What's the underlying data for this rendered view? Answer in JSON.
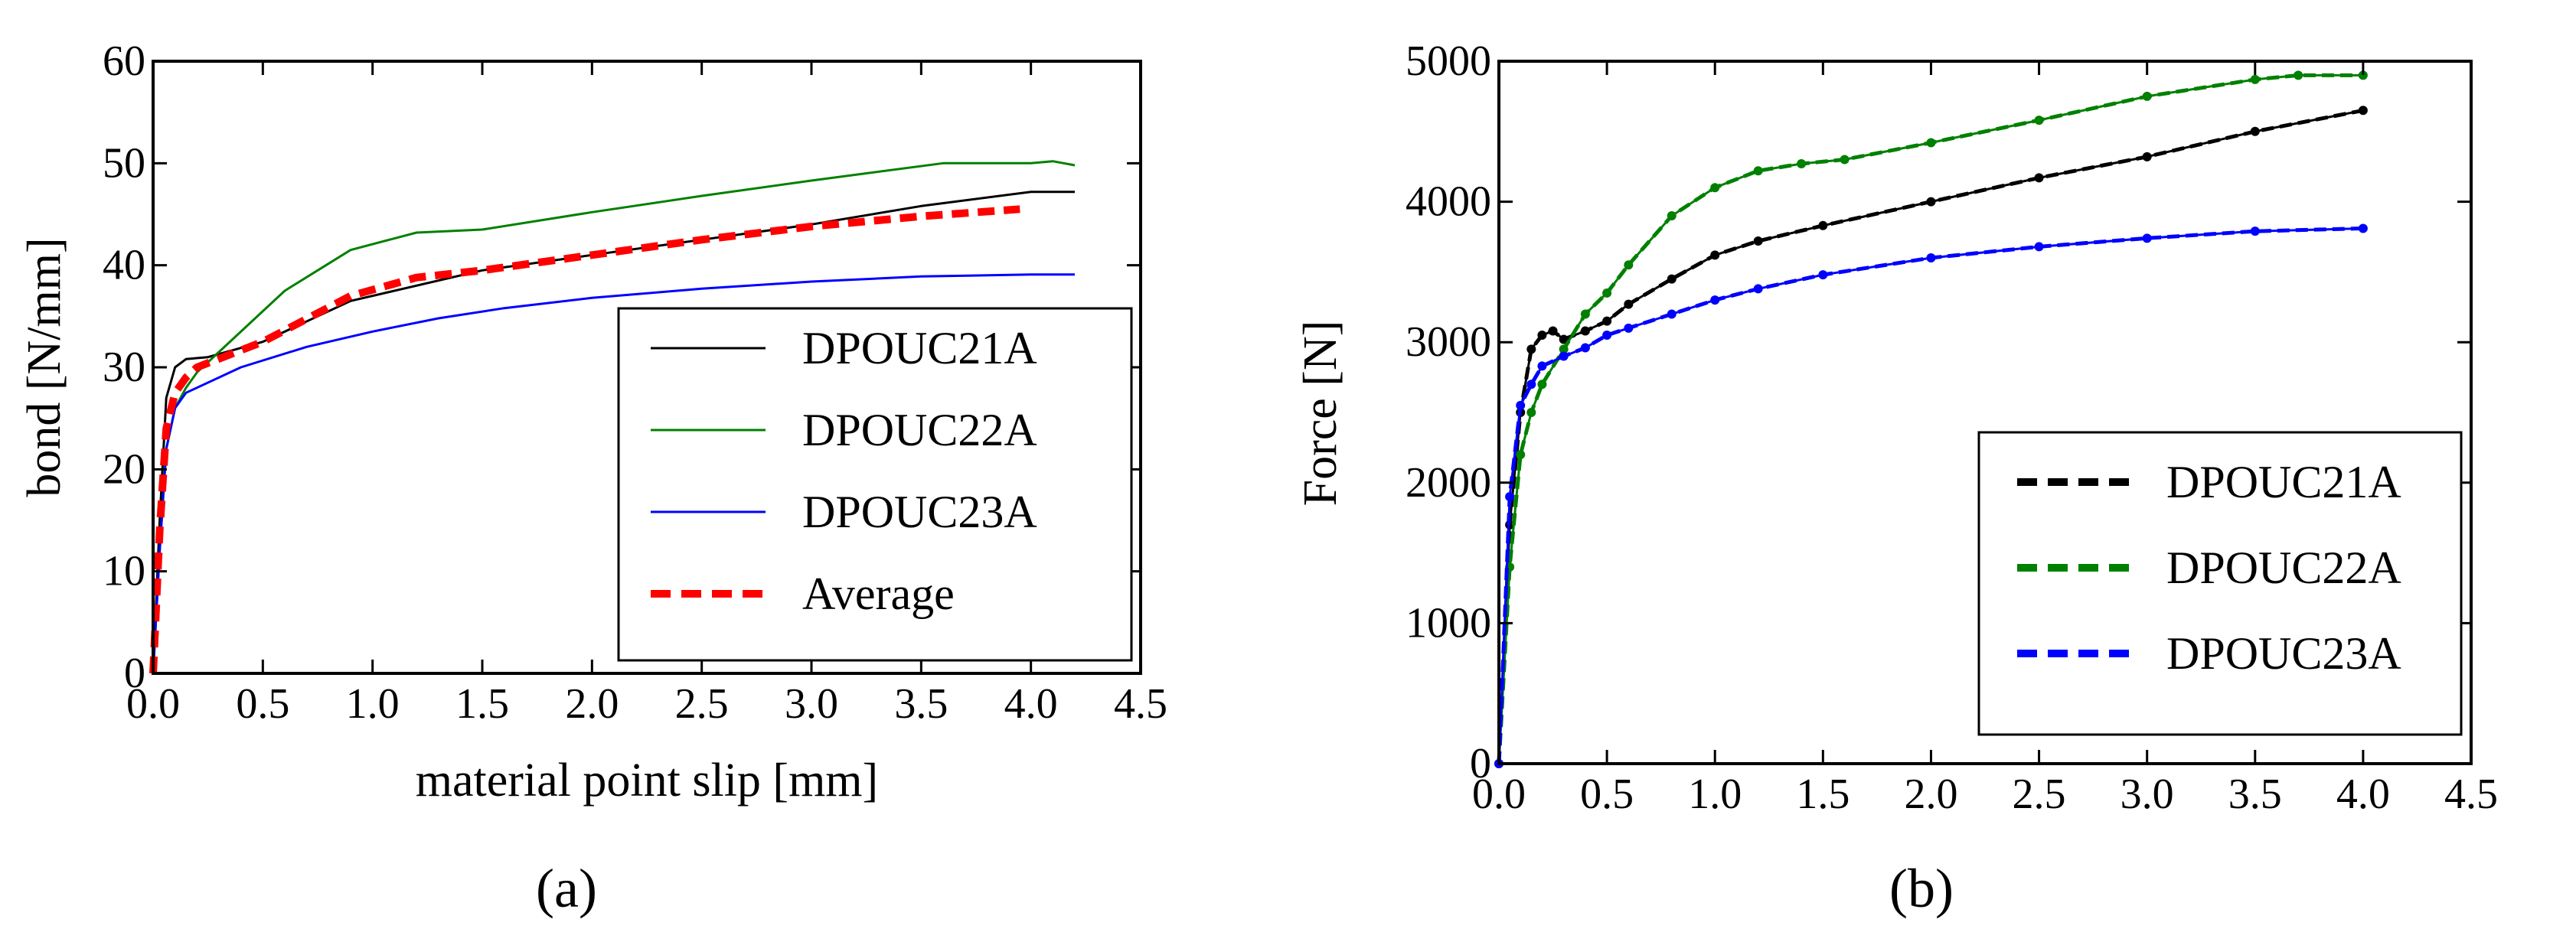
{
  "chart_data": [
    {
      "type": "line",
      "panel": "a",
      "caption": "(a)",
      "xlabel": "material point slip [mm]",
      "ylabel": "bond [N/mm]",
      "xlim": [
        0,
        4.5
      ],
      "ylim": [
        0,
        60
      ],
      "xticks": [
        "0.0",
        "0.5",
        "1.0",
        "1.5",
        "2.0",
        "2.5",
        "3.0",
        "3.5",
        "4.0",
        "4.5"
      ],
      "yticks": [
        "0",
        "10",
        "20",
        "30",
        "40",
        "50",
        "60"
      ],
      "legend_position": "lower-right",
      "series": [
        {
          "name": "DPOUC21A",
          "color": "#000000",
          "style": "solid",
          "x": [
            0,
            0.03,
            0.06,
            0.1,
            0.15,
            0.25,
            0.5,
            0.9,
            1.2,
            1.5,
            2.0,
            2.5,
            3.0,
            3.5,
            4.0,
            4.2
          ],
          "y": [
            0,
            15,
            27,
            30,
            30.8,
            31,
            32.5,
            36.5,
            38,
            39.5,
            41,
            42.5,
            44,
            45.8,
            47.2,
            47.2
          ]
        },
        {
          "name": "DPOUC22A",
          "color": "#008000",
          "style": "solid",
          "x": [
            0,
            0.03,
            0.06,
            0.1,
            0.15,
            0.2,
            0.3,
            0.45,
            0.6,
            0.75,
            0.9,
            1.2,
            1.5,
            2.0,
            2.5,
            3.0,
            3.6,
            4.0,
            4.1,
            4.2
          ],
          "y": [
            0,
            12,
            22,
            26,
            28,
            29.5,
            31.5,
            34.5,
            37.5,
            39.5,
            41.5,
            43.2,
            43.5,
            45.2,
            46.8,
            48.3,
            50,
            50,
            50.2,
            49.8
          ]
        },
        {
          "name": "DPOUC23A",
          "color": "#0000ff",
          "style": "solid",
          "x": [
            0,
            0.03,
            0.06,
            0.1,
            0.15,
            0.2,
            0.4,
            0.7,
            1.0,
            1.3,
            1.6,
            2.0,
            2.5,
            3.0,
            3.5,
            4.0,
            4.2
          ],
          "y": [
            0,
            12,
            22,
            26,
            27.5,
            28,
            30,
            32,
            33.5,
            34.8,
            35.8,
            36.8,
            37.7,
            38.4,
            38.9,
            39.1,
            39.1
          ]
        },
        {
          "name": "Average",
          "color": "#ff0000",
          "style": "dashed",
          "x": [
            0,
            0.03,
            0.06,
            0.1,
            0.15,
            0.2,
            0.5,
            0.9,
            1.2,
            1.5,
            2.0,
            2.5,
            3.0,
            3.5,
            3.95
          ],
          "y": [
            0,
            14,
            24,
            27.5,
            29,
            30,
            32.5,
            37,
            38.8,
            39.5,
            41,
            42.5,
            43.8,
            44.8,
            45.5
          ]
        }
      ]
    },
    {
      "type": "line",
      "panel": "b",
      "caption": "(b)",
      "xlabel": "",
      "ylabel": "Force [N]",
      "xlim": [
        0,
        4.5
      ],
      "ylim": [
        0,
        5000
      ],
      "xticks": [
        "0.0",
        "0.5",
        "1.0",
        "1.5",
        "2.0",
        "2.5",
        "3.0",
        "3.5",
        "4.0",
        "4.5"
      ],
      "yticks": [
        "0",
        "1000",
        "2000",
        "3000",
        "4000",
        "5000"
      ],
      "legend_position": "lower-right",
      "series": [
        {
          "name": "DPOUC21A",
          "color": "#000000",
          "style": "dashed+markers",
          "x": [
            0,
            0.05,
            0.1,
            0.15,
            0.2,
            0.25,
            0.3,
            0.4,
            0.5,
            0.6,
            0.8,
            1.0,
            1.2,
            1.5,
            2.0,
            2.5,
            3.0,
            3.5,
            4.0
          ],
          "y": [
            0,
            1700,
            2500,
            2950,
            3050,
            3080,
            3020,
            3080,
            3150,
            3270,
            3450,
            3620,
            3720,
            3830,
            4000,
            4170,
            4320,
            4500,
            4650
          ]
        },
        {
          "name": "DPOUC22A",
          "color": "#008000",
          "style": "dashed+markers",
          "x": [
            0,
            0.05,
            0.1,
            0.15,
            0.2,
            0.3,
            0.4,
            0.5,
            0.6,
            0.8,
            1.0,
            1.2,
            1.4,
            1.6,
            2.0,
            2.5,
            3.0,
            3.5,
            3.7,
            4.0
          ],
          "y": [
            0,
            1400,
            2200,
            2500,
            2700,
            2950,
            3200,
            3350,
            3550,
            3900,
            4100,
            4220,
            4270,
            4300,
            4420,
            4580,
            4750,
            4870,
            4900,
            4900
          ]
        },
        {
          "name": "DPOUC23A",
          "color": "#0000ff",
          "style": "dashed+markers",
          "x": [
            0,
            0.05,
            0.1,
            0.15,
            0.2,
            0.3,
            0.4,
            0.5,
            0.6,
            0.8,
            1.0,
            1.2,
            1.5,
            2.0,
            2.5,
            3.0,
            3.5,
            4.0
          ],
          "y": [
            0,
            1900,
            2550,
            2700,
            2830,
            2900,
            2960,
            3050,
            3100,
            3200,
            3300,
            3380,
            3480,
            3600,
            3680,
            3740,
            3790,
            3810
          ]
        }
      ]
    }
  ]
}
